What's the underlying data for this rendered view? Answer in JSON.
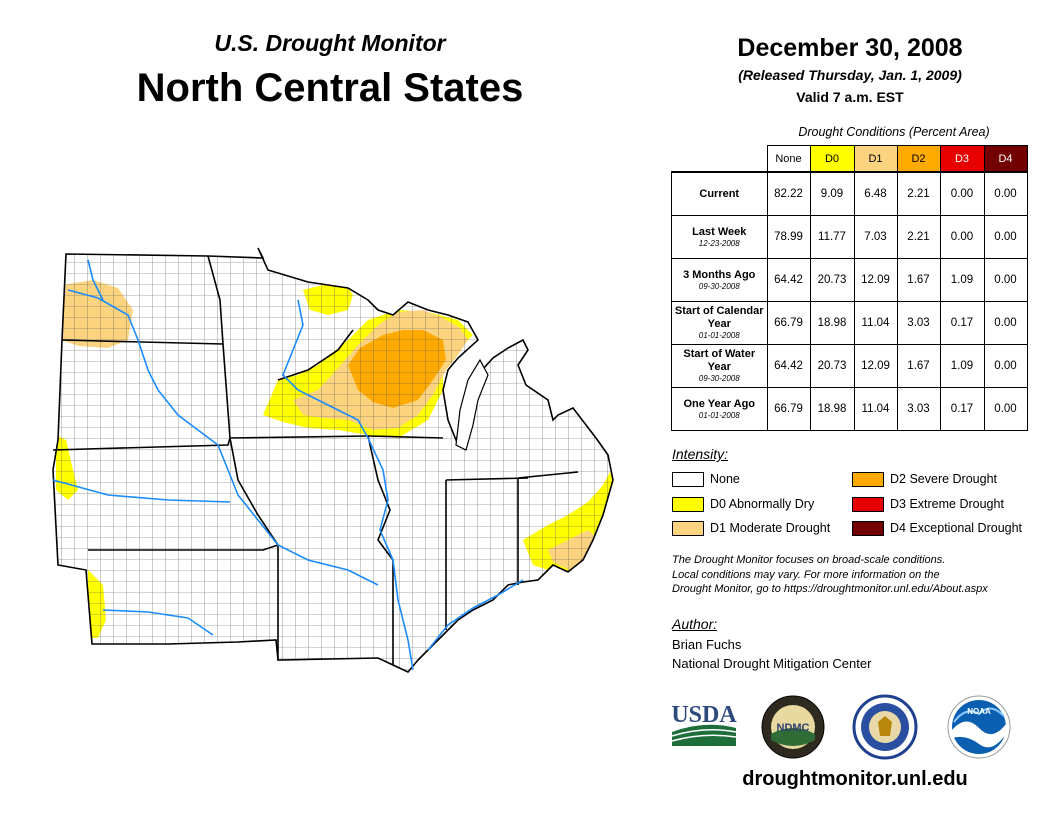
{
  "header": {
    "subtitle": "U.S. Drought Monitor",
    "region": "North Central States",
    "date": "December 30, 2008",
    "released": "(Released Thursday, Jan. 1, 2009)",
    "valid": "Valid 7 a.m. EST"
  },
  "table": {
    "caption": "Drought Conditions (Percent Area)",
    "columns": [
      "None",
      "D0",
      "D1",
      "D2",
      "D3",
      "D4"
    ],
    "column_colors": [
      "#ffffff",
      "#ffff00",
      "#fcd37f",
      "#ffaa00",
      "#e60000",
      "#730000"
    ],
    "rows": [
      {
        "label": "Current",
        "date": "",
        "values": [
          "82.22",
          "9.09",
          "6.48",
          "2.21",
          "0.00",
          "0.00"
        ]
      },
      {
        "label": "Last Week",
        "date": "12-23-2008",
        "values": [
          "78.99",
          "11.77",
          "7.03",
          "2.21",
          "0.00",
          "0.00"
        ]
      },
      {
        "label": "3 Months Ago",
        "date": "09-30-2008",
        "values": [
          "64.42",
          "20.73",
          "12.09",
          "1.67",
          "1.09",
          "0.00"
        ]
      },
      {
        "label": "Start of Calendar Year",
        "date": "01-01-2008",
        "values": [
          "66.79",
          "18.98",
          "11.04",
          "3.03",
          "0.17",
          "0.00"
        ]
      },
      {
        "label": "Start of Water Year",
        "date": "09-30-2008",
        "values": [
          "64.42",
          "20.73",
          "12.09",
          "1.67",
          "1.09",
          "0.00"
        ]
      },
      {
        "label": "One Year Ago",
        "date": "01-01-2008",
        "values": [
          "66.79",
          "18.98",
          "11.04",
          "3.03",
          "0.17",
          "0.00"
        ]
      }
    ]
  },
  "legend": {
    "heading": "Intensity:",
    "items": [
      {
        "label": "None",
        "color": "#ffffff"
      },
      {
        "label": "D0 Abnormally Dry",
        "color": "#ffff00"
      },
      {
        "label": "D1 Moderate Drought",
        "color": "#fcd37f"
      },
      {
        "label": "D2 Severe Drought",
        "color": "#ffaa00"
      },
      {
        "label": "D3 Extreme Drought",
        "color": "#e60000"
      },
      {
        "label": "D4 Exceptional Drought",
        "color": "#730000"
      }
    ]
  },
  "disclaimer": {
    "line1": "The Drought Monitor focuses on broad-scale conditions.",
    "line2": "Local conditions may vary. For more information on the",
    "line3": "Drought Monitor, go to https://droughtmonitor.unl.edu/About.aspx"
  },
  "author": {
    "heading": "Author:",
    "name": "Brian Fuchs",
    "org": "National Drought Mitigation Center"
  },
  "logos": {
    "usda": "USDA",
    "ndmc": "NDMC",
    "noaa": "NOAA"
  },
  "website": "droughtmonitor.unl.edu"
}
